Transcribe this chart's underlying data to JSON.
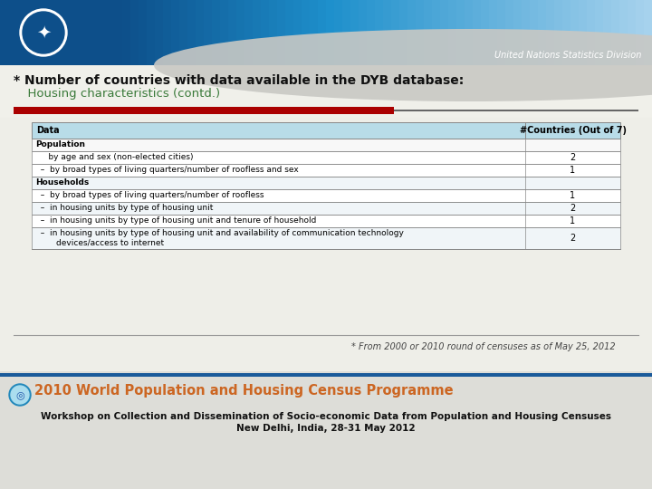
{
  "title_line1": "* Number of countries with data available in the DYB database:",
  "title_line2": "  Housing characteristics (contd.)",
  "un_text": "United Nations Statistics Division",
  "footnote": "* From 2000 or 2010 round of censuses as of May 25, 2012",
  "footer_line1": "Workshop on Collection and Dissemination of Socio-economic Data from Population and Housing Censuses",
  "footer_line2": "New Delhi, India, 28-31 May 2012",
  "footer_title": "2010 World Population and Housing Census Programme",
  "table_header": [
    "Data",
    "#Countries (Out of 7)"
  ],
  "table_rows": [
    {
      "label": "Population",
      "indent": 0,
      "value": "",
      "bold": true
    },
    {
      "label": "     by age and sex (non-elected cities)",
      "indent": 1,
      "value": "2",
      "bold": false
    },
    {
      "label": "  –  by broad types of living quarters/number of roofless and sex",
      "indent": 1,
      "value": "1",
      "bold": false
    },
    {
      "label": "Households",
      "indent": 0,
      "value": "",
      "bold": true
    },
    {
      "label": "  –  by broad types of living quarters/number of roofless",
      "indent": 1,
      "value": "1",
      "bold": false
    },
    {
      "label": "  –  in housing units by type of housing unit",
      "indent": 1,
      "value": "2",
      "bold": false
    },
    {
      "label": "  –  in housing units by type of housing unit and tenure of household",
      "indent": 1,
      "value": "1",
      "bold": false
    },
    {
      "label": "  –  in housing units by type of housing unit and availability of communication technology\n        devices/access to internet",
      "indent": 1,
      "value": "2",
      "bold": false
    }
  ],
  "header_bg": "#b8dce8",
  "row_bg_odd": "#ffffff",
  "row_bg_even": "#f0f5f8",
  "table_border": "#888888",
  "red_bar_color": "#aa0000",
  "title_color": "#111111",
  "subtitle_color": "#3a7a3a",
  "bg_color": "#eeeee8",
  "footer_title_color": "#cc6622",
  "footer_bg": "#ddddd8",
  "header_dark_blue": "#0d4f8a",
  "header_mid_blue": "#1e90cc",
  "header_light_blue": "#aad4ee",
  "header_gray": "#c8c8c4"
}
